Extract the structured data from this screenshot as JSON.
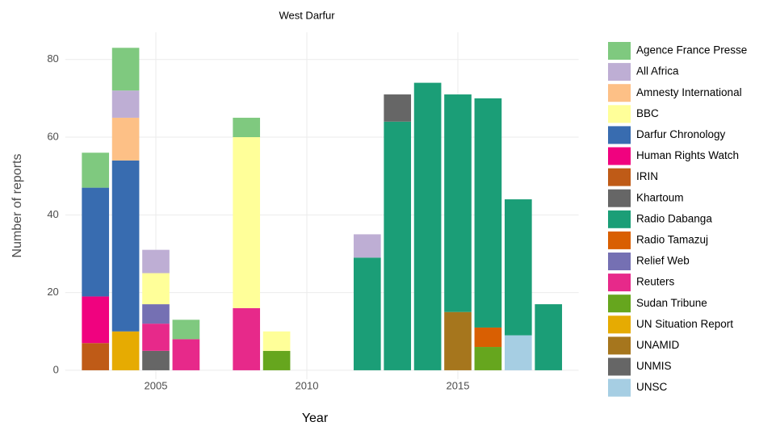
{
  "chart_data": {
    "type": "stacked_bar",
    "title": "West Darfur",
    "x_label": "Year",
    "y_label": "Number of reports",
    "x": [
      2003,
      2004,
      2005,
      2006,
      2008,
      2009,
      2012,
      2013,
      2014,
      2015,
      2016,
      2017,
      2018
    ],
    "xlim": [
      2002,
      2019
    ],
    "xticks": [
      2005,
      2010,
      2015
    ],
    "ylim": [
      -2.3,
      87
    ],
    "yticks": [
      0,
      20,
      40,
      60,
      80
    ],
    "grid": true,
    "legend": "right",
    "series": [
      {
        "name": "Agence France Presse",
        "color": "#7fc97f",
        "values": [
          9,
          11,
          null,
          5,
          5,
          null,
          null,
          null,
          null,
          null,
          null,
          null,
          null
        ]
      },
      {
        "name": "All Africa",
        "color": "#beaed4",
        "values": [
          null,
          7,
          6,
          null,
          null,
          null,
          6,
          null,
          null,
          null,
          null,
          null,
          null
        ]
      },
      {
        "name": "Amnesty International",
        "color": "#fdc086",
        "values": [
          null,
          11,
          null,
          null,
          null,
          null,
          null,
          null,
          null,
          null,
          null,
          null,
          null
        ]
      },
      {
        "name": "BBC",
        "color": "#ffff99",
        "values": [
          null,
          null,
          8,
          null,
          44,
          5,
          null,
          null,
          null,
          null,
          null,
          null,
          null
        ]
      },
      {
        "name": "Darfur Chronology",
        "color": "#386cb0",
        "values": [
          28,
          44,
          null,
          null,
          null,
          null,
          null,
          null,
          null,
          null,
          null,
          null,
          null
        ]
      },
      {
        "name": "Human Rights Watch",
        "color": "#f0027f",
        "values": [
          12,
          null,
          null,
          null,
          null,
          null,
          null,
          null,
          null,
          null,
          null,
          null,
          null
        ]
      },
      {
        "name": "IRIN",
        "color": "#bf5b17",
        "values": [
          7,
          null,
          null,
          null,
          null,
          null,
          null,
          null,
          null,
          null,
          null,
          null,
          null
        ]
      },
      {
        "name": "Khartoum",
        "color": "#666666",
        "values": [
          null,
          null,
          null,
          null,
          null,
          null,
          null,
          7,
          null,
          null,
          null,
          null,
          null
        ]
      },
      {
        "name": "Radio Dabanga",
        "color": "#1b9e77",
        "values": [
          null,
          null,
          null,
          null,
          null,
          null,
          29,
          64,
          74,
          56,
          59,
          35,
          17
        ]
      },
      {
        "name": "Radio Tamazuj",
        "color": "#d95f02",
        "values": [
          null,
          null,
          null,
          null,
          null,
          null,
          null,
          null,
          null,
          null,
          5,
          null,
          null
        ]
      },
      {
        "name": "Relief Web",
        "color": "#7570b3",
        "values": [
          null,
          null,
          5,
          null,
          null,
          null,
          null,
          null,
          null,
          null,
          null,
          null,
          null
        ]
      },
      {
        "name": "Reuters",
        "color": "#e7298a",
        "values": [
          null,
          null,
          7,
          8,
          16,
          null,
          null,
          null,
          null,
          null,
          null,
          null,
          null
        ]
      },
      {
        "name": "Sudan Tribune",
        "color": "#66a61e",
        "values": [
          null,
          null,
          null,
          null,
          null,
          5,
          null,
          null,
          null,
          null,
          6,
          null,
          null
        ]
      },
      {
        "name": "UN Situation Report",
        "color": "#e6ab02",
        "values": [
          null,
          10,
          null,
          null,
          null,
          null,
          null,
          null,
          null,
          null,
          null,
          null,
          null
        ]
      },
      {
        "name": "UNAMID",
        "color": "#a6761d",
        "values": [
          null,
          null,
          null,
          null,
          null,
          null,
          null,
          null,
          null,
          15,
          null,
          null,
          null
        ]
      },
      {
        "name": "UNMIS",
        "color": "#666666",
        "values": [
          null,
          null,
          5,
          null,
          null,
          null,
          null,
          null,
          null,
          null,
          null,
          null,
          null
        ]
      },
      {
        "name": "UNSC",
        "color": "#a6cee3",
        "values": [
          null,
          null,
          null,
          null,
          null,
          null,
          null,
          null,
          null,
          null,
          null,
          9,
          null
        ]
      }
    ]
  }
}
